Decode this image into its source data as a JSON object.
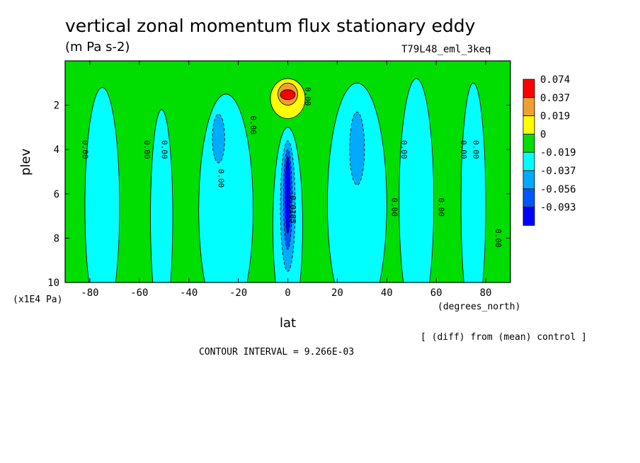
{
  "header": {
    "title": "vertical zonal momentum flux stationary eddy",
    "units": "(m Pa s-2)",
    "dataset": "T79L48_eml_3keq"
  },
  "footer": {
    "diff_note": "[ (diff) from (mean) control ]",
    "contour_interval": "CONTOUR INTERVAL = 9.266E-03"
  },
  "chart_data": {
    "type": "heatmap",
    "title": "vertical zonal momentum flux stationary eddy",
    "subtitle": "(m Pa s-2)",
    "xlabel": "lat",
    "xunit": "(degrees_north)",
    "ylabel": "plev",
    "yunit": "(x1E4 Pa)",
    "xlim": [
      -90,
      90
    ],
    "ylim": [
      10,
      0
    ],
    "xticks": [
      -80,
      -60,
      -40,
      -20,
      0,
      20,
      40,
      60,
      80
    ],
    "xtick_labels": [
      "-80",
      "-60",
      "-40",
      "-20",
      "0",
      "20",
      "40",
      "60",
      "80"
    ],
    "yticks": [
      2,
      4,
      6,
      8,
      10
    ],
    "ytick_labels": [
      "2",
      "4",
      "6",
      "8",
      "10"
    ],
    "contour_interval": 0.009266,
    "legend": {
      "position": "right",
      "levels": [
        "0.074",
        "0.037",
        "0.019",
        "0",
        "-0.019",
        "-0.037",
        "-0.056",
        "-0.093"
      ],
      "colors": [
        "#ff0000",
        "#f0a030",
        "#ffff00",
        "#00dd00",
        "#00ffff",
        "#00aaff",
        "#0055ff",
        "#0000ff"
      ]
    },
    "contour_labels": [
      {
        "text": "0.00",
        "lat": -83,
        "plev": 4.0
      },
      {
        "text": "0.00",
        "lat": -58,
        "plev": 4.0
      },
      {
        "text": "0.00",
        "lat": -51,
        "plev": 4.0
      },
      {
        "text": "0.00",
        "lat": -28,
        "plev": 5.3
      },
      {
        "text": "0.00",
        "lat": -15,
        "plev": 2.9
      },
      {
        "text": "0.00",
        "lat": 7,
        "plev": 1.6
      },
      {
        "text": "-0.0185",
        "lat": 1,
        "plev": 6.6
      },
      {
        "text": "0.00",
        "lat": 42,
        "plev": 6.6
      },
      {
        "text": "0.00",
        "lat": 46,
        "plev": 4.0
      },
      {
        "text": "0.00",
        "lat": 61,
        "plev": 6.6
      },
      {
        "text": "0.00",
        "lat": 70,
        "plev": 4.0
      },
      {
        "text": "0.00",
        "lat": 75,
        "plev": 4.0
      },
      {
        "text": "0.00",
        "lat": 84,
        "plev": 8.0
      }
    ],
    "regions": [
      {
        "level": "-0.019",
        "lat": -75,
        "plev_top": 1.2,
        "plev_bottom": 10,
        "width": 14
      },
      {
        "level": "-0.019",
        "lat": -51,
        "plev_top": 2.2,
        "plev_bottom": 10,
        "width": 9
      },
      {
        "level": "-0.019",
        "lat": -25,
        "plev_top": 1.5,
        "plev_bottom": 10,
        "width": 22
      },
      {
        "level": "-0.019",
        "lat": 0,
        "plev_top": 3.0,
        "plev_bottom": 10,
        "width": 12
      },
      {
        "level": "-0.019",
        "lat": 28,
        "plev_top": 1.0,
        "plev_bottom": 10,
        "width": 24
      },
      {
        "level": "-0.019",
        "lat": 52,
        "plev_top": 0.8,
        "plev_bottom": 10,
        "width": 14
      },
      {
        "level": "-0.019",
        "lat": 75,
        "plev_top": 1.0,
        "plev_bottom": 10,
        "width": 10
      },
      {
        "level": "0.019",
        "lat": 0,
        "plev_top": 0.8,
        "plev_bottom": 2.6,
        "width": 14
      },
      {
        "level": "0.037",
        "lat": 0,
        "plev_top": 1.0,
        "plev_bottom": 2.0,
        "width": 8
      },
      {
        "level": "0.074",
        "lat": 0,
        "plev_top": 1.3,
        "plev_bottom": 1.75,
        "width": 6
      },
      {
        "level": "-0.037",
        "lat": -28,
        "plev_top": 2.4,
        "plev_bottom": 4.6,
        "width": 5
      },
      {
        "level": "-0.037",
        "lat": 28,
        "plev_top": 2.3,
        "plev_bottom": 5.6,
        "width": 6
      },
      {
        "level": "-0.037",
        "lat": 0,
        "plev_top": 3.6,
        "plev_bottom": 9.5,
        "width": 6
      },
      {
        "level": "-0.056",
        "lat": 0,
        "plev_top": 4.0,
        "plev_bottom": 8.5,
        "width": 3.5
      },
      {
        "level": "-0.093",
        "lat": 0,
        "plev_top": 4.3,
        "plev_bottom": 7.8,
        "width": 2
      }
    ]
  }
}
